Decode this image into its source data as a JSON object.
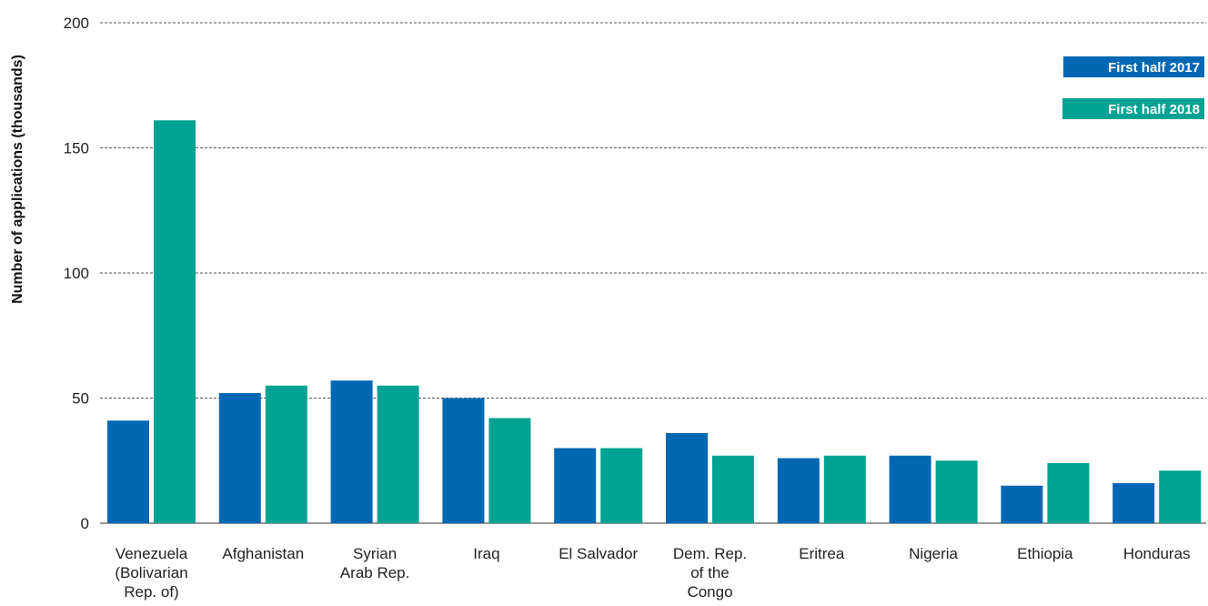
{
  "chart_data": {
    "type": "bar",
    "categories": [
      [
        "Venezuela",
        "(Bolivarian",
        "Rep. of)"
      ],
      [
        "Afghanistan"
      ],
      [
        "Syrian",
        "Arab Rep."
      ],
      [
        "Iraq"
      ],
      [
        "El Salvador"
      ],
      [
        "Dem. Rep.",
        "of the",
        "Congo"
      ],
      [
        "Eritrea"
      ],
      [
        "Nigeria"
      ],
      [
        "Ethiopia"
      ],
      [
        "Honduras"
      ]
    ],
    "series": [
      {
        "name": "First half 2017",
        "color": "#0068b3",
        "values": [
          41,
          52,
          57,
          50,
          30,
          36,
          26,
          27,
          15,
          16
        ]
      },
      {
        "name": "First half 2018",
        "color": "#00a392",
        "values": [
          161,
          55,
          55,
          42,
          30,
          27,
          27,
          25,
          24,
          21
        ]
      }
    ],
    "ylabel": "Number of applications (thousands)",
    "ylim": [
      0,
      200
    ],
    "yticks": [
      0,
      50,
      100,
      150,
      200
    ],
    "grid": true,
    "legend_position": "top-right"
  }
}
